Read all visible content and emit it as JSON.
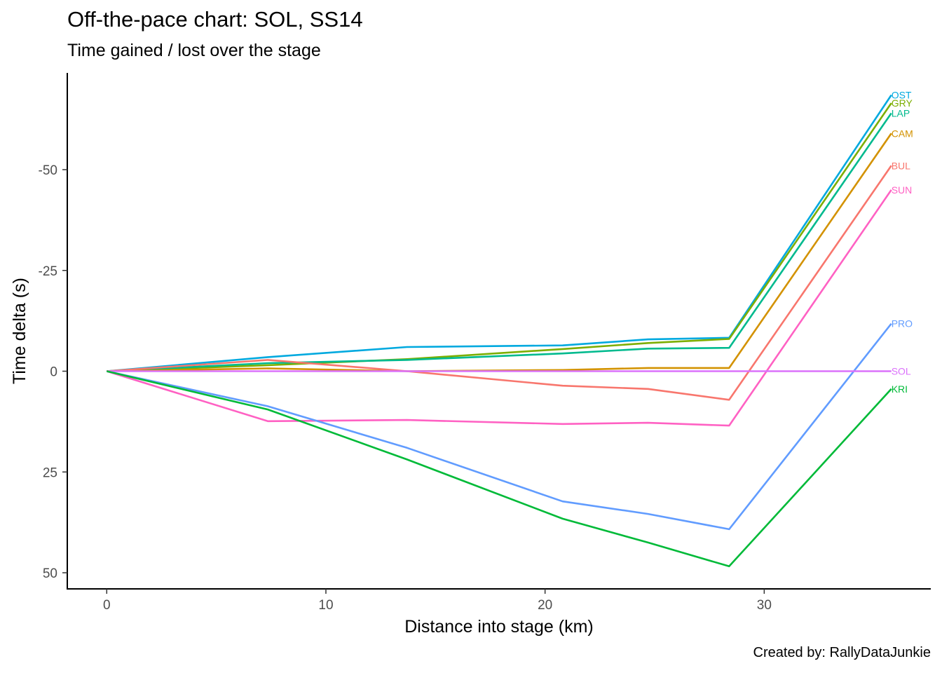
{
  "chart_data": {
    "type": "line",
    "title": "Off-the-pace chart: SOL, SS14",
    "subtitle": "Time gained / lost over the stage",
    "caption": "Created by: RallyDataJunkie",
    "xlabel": "Distance into stage (km)",
    "ylabel": "Time delta (s)",
    "xlim": [
      -1.8,
      37.6
    ],
    "ylim": [
      -74,
      54
    ],
    "y_reversed": true,
    "x_ticks": [
      0,
      10,
      20,
      30
    ],
    "y_ticks": [
      -50,
      -25,
      0,
      25,
      50
    ],
    "y_tick_labels": [
      "-50",
      "-25",
      "0",
      "25",
      "50"
    ],
    "grid": false,
    "legend": "none (labels at line ends)",
    "x": [
      0,
      7.35,
      13.7,
      20.8,
      24.7,
      28.4,
      35.8
    ],
    "series": [
      {
        "name": "OST",
        "color": "#00A9DF",
        "values": [
          0,
          -3.5,
          -6.0,
          -6.4,
          -7.9,
          -8.3,
          -68.5
        ]
      },
      {
        "name": "GRY",
        "color": "#7CAE00",
        "values": [
          0,
          -1.5,
          -3.0,
          -5.5,
          -7.0,
          -8.0,
          -66.5
        ]
      },
      {
        "name": "LAP",
        "color": "#00BA8E",
        "values": [
          0,
          -2.0,
          -2.8,
          -4.4,
          -5.6,
          -5.8,
          -64.0
        ]
      },
      {
        "name": "CAM",
        "color": "#D39200",
        "values": [
          0,
          -0.7,
          0.0,
          -0.3,
          -0.8,
          -0.8,
          -59.0
        ]
      },
      {
        "name": "BUL",
        "color": "#F8766D",
        "values": [
          0,
          -2.8,
          0.0,
          3.6,
          4.4,
          7.1,
          -51.0
        ]
      },
      {
        "name": "SUN",
        "color": "#FF61C3",
        "values": [
          0,
          12.4,
          12.1,
          13.1,
          12.8,
          13.5,
          -45.0
        ]
      },
      {
        "name": "PRO",
        "color": "#619CFF",
        "values": [
          0,
          8.7,
          19.0,
          32.3,
          35.4,
          39.2,
          -11.8
        ]
      },
      {
        "name": "SOL",
        "color": "#DB72FB",
        "values": [
          0,
          0,
          0,
          0,
          0,
          0,
          0
        ]
      },
      {
        "name": "KRI",
        "color": "#00BA38",
        "values": [
          0,
          9.5,
          21.9,
          36.6,
          42.5,
          48.4,
          4.4
        ]
      }
    ]
  }
}
